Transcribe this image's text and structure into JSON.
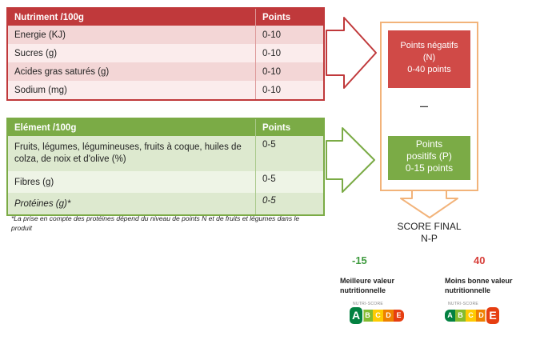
{
  "negatives": {
    "header": [
      "Nutriment /100g",
      "Points"
    ],
    "rows": [
      {
        "label": "Energie (KJ)",
        "points": "0-10"
      },
      {
        "label": "Sucres (g)",
        "points": "0-10"
      },
      {
        "label": "Acides gras saturés (g)",
        "points": "0-10"
      },
      {
        "label": "Sodium (mg)",
        "points": "0-10"
      }
    ],
    "box": {
      "line1": "Points négatifs",
      "line2": "(N)",
      "line3": "0-40 points"
    },
    "color": "#c0393b"
  },
  "positives": {
    "header": [
      "Elément /100g",
      "Points"
    ],
    "rows": [
      {
        "label": "Fruits, légumes, légumineuses, fruits à coque, huiles de colza, de noix et d'olive (%)",
        "points": "0-5"
      },
      {
        "label": "Fibres (g)",
        "points": "0-5"
      },
      {
        "label": "Protéines (g)*",
        "points": "0-5"
      }
    ],
    "box": {
      "line1": "Points",
      "line2": "positifs (P)",
      "line3": "0-15 points"
    },
    "color": "#7bab46"
  },
  "footnote": "*La prise en compte des protéines dépend du niveau de points N et de fruits et légumes dans le produit",
  "minus": "–",
  "score": {
    "line1": "SCORE FINAL",
    "line2": "N-P"
  },
  "best": {
    "value": "-15",
    "caption_line1": "Meilleure valeur",
    "caption_line2": "nutritionnelle",
    "highlight": "A"
  },
  "worst": {
    "value": "40",
    "caption_line1": "Moins bonne valeur",
    "caption_line2": "nutritionnelle",
    "highlight": "E"
  },
  "nutriscore": {
    "label": "NUTRI-SCORE",
    "letters": [
      "A",
      "B",
      "C",
      "D",
      "E"
    ],
    "colors": [
      "#038141",
      "#85bb2f",
      "#fecb02",
      "#ee8100",
      "#e63e11"
    ]
  }
}
